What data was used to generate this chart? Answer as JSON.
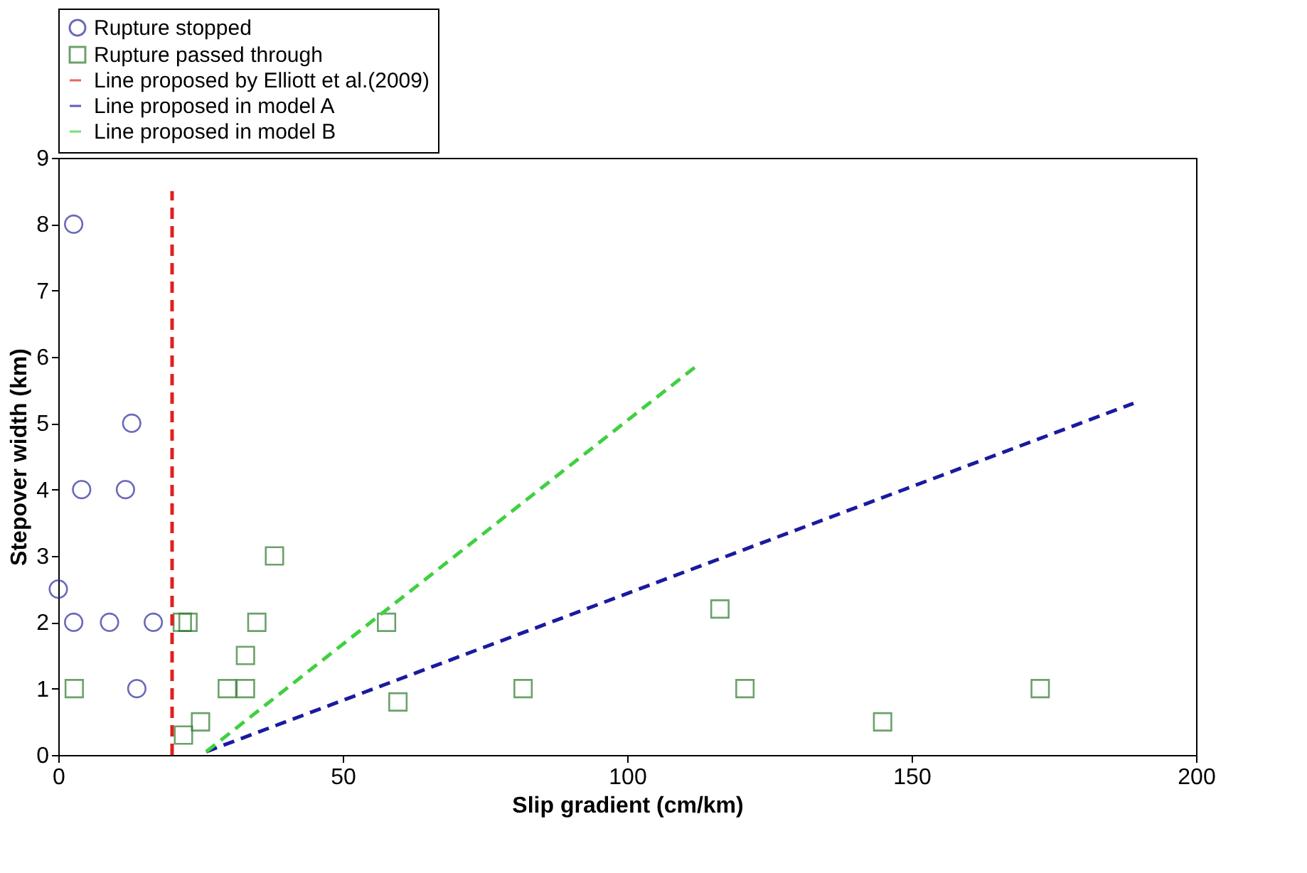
{
  "chart_data": {
    "type": "scatter",
    "xlabel": "Slip gradient (cm/km)",
    "ylabel": "Stepover width (km)",
    "xlim": [
      0,
      200
    ],
    "xticks": [
      0,
      50,
      100,
      150,
      200
    ],
    "ylim": [
      0,
      9
    ],
    "yticks": [
      0,
      1,
      2,
      3,
      4,
      5,
      6,
      7,
      8,
      9
    ],
    "grid": false,
    "legend": "top",
    "series": [
      {
        "name": "Rupture stopped",
        "marker": "circle",
        "color": "#2a2a9a",
        "x": [
          2.7,
          4.1,
          11.8,
          12.9,
          0,
          2.7,
          9,
          16.7,
          13.8
        ],
        "values": [
          8,
          4,
          4,
          5,
          2.5,
          2,
          2,
          2,
          1
        ]
      },
      {
        "name": "Rupture passed through",
        "marker": "square",
        "color": "#2e7a2e",
        "x": [
          2.8,
          21.8,
          22.8,
          22,
          25,
          29.7,
          32.9,
          32.9,
          34.9,
          38,
          57.7,
          59.7,
          81.7,
          116.3,
          120.7,
          144.9,
          172.6
        ],
        "values": [
          1,
          2,
          2,
          0.3,
          0.5,
          1,
          1,
          1.5,
          2,
          3,
          2,
          0.8,
          1,
          2.2,
          1,
          0.5,
          1
        ]
      },
      {
        "name": "Line proposed by Elliott et al.(2009)",
        "type": "line",
        "line_style": "dashed",
        "marker": "none",
        "color": "#e02020",
        "x": [
          20,
          20
        ],
        "values": [
          0,
          8.5
        ]
      },
      {
        "name": "Line proposed in model A",
        "type": "line",
        "line_style": "dashed",
        "marker": "none",
        "color": "#1a1aa0",
        "x": [
          26,
          189
        ],
        "values": [
          0.05,
          5.3
        ]
      },
      {
        "name": "Line proposed in model B",
        "type": "line",
        "line_style": "dashed",
        "marker": "none",
        "color": "#40d040",
        "x": [
          26,
          112
        ],
        "values": [
          0.05,
          5.85
        ]
      }
    ]
  }
}
